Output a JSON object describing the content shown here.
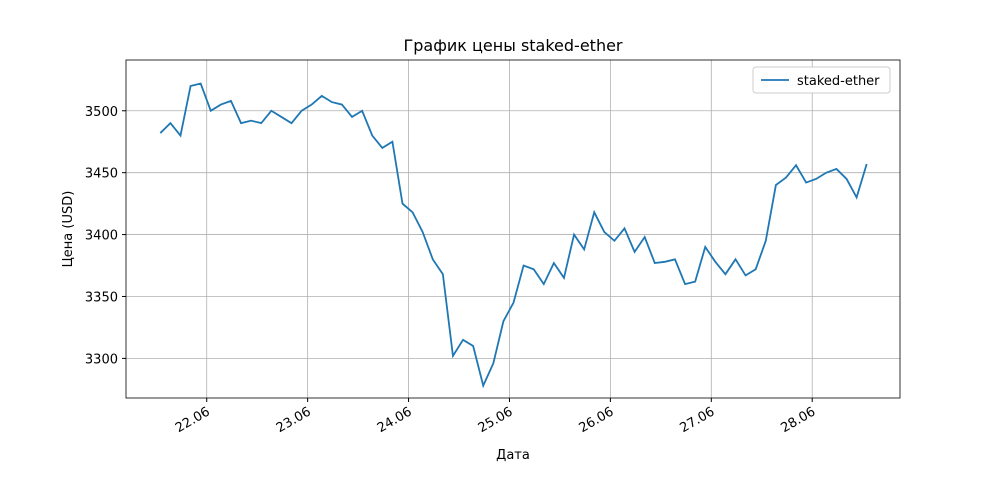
{
  "chart_data": {
    "type": "line",
    "title": "График цены staked-ether",
    "xlabel": "Дата",
    "ylabel": "Цена (USD)",
    "x": [
      21.54,
      21.64,
      21.74,
      21.84,
      21.94,
      22.04,
      22.14,
      22.24,
      22.34,
      22.44,
      22.54,
      22.64,
      22.74,
      22.84,
      22.94,
      23.04,
      23.14,
      23.24,
      23.34,
      23.44,
      23.54,
      23.64,
      23.74,
      23.84,
      23.94,
      24.04,
      24.14,
      24.24,
      24.34,
      24.44,
      24.54,
      24.64,
      24.74,
      24.84,
      24.94,
      25.04,
      25.14,
      25.24,
      25.34,
      25.44,
      25.54,
      25.64,
      25.74,
      25.84,
      25.94,
      26.04,
      26.14,
      26.24,
      26.34,
      26.44,
      26.54,
      26.64,
      26.74,
      26.84,
      26.94,
      27.04,
      27.14,
      27.24,
      27.34,
      27.44,
      27.54,
      27.64,
      27.74,
      27.84,
      27.94,
      28.04,
      28.14,
      28.24,
      28.34,
      28.44,
      28.54
    ],
    "series": [
      {
        "name": "staked-ether",
        "color": "#1f77b4",
        "values": [
          3482,
          3490,
          3480,
          3520,
          3522,
          3500,
          3505,
          3508,
          3490,
          3492,
          3490,
          3500,
          3495,
          3490,
          3500,
          3505,
          3512,
          3507,
          3505,
          3495,
          3500,
          3480,
          3470,
          3475,
          3425,
          3418,
          3402,
          3380,
          3368,
          3302,
          3315,
          3310,
          3278,
          3296,
          3330,
          3345,
          3375,
          3372,
          3360,
          3377,
          3365,
          3400,
          3388,
          3418,
          3402,
          3395,
          3405,
          3386,
          3398,
          3377,
          3378,
          3380,
          3360,
          3362,
          3390,
          3378,
          3368,
          3380,
          3367,
          3372,
          3395,
          3440,
          3446,
          3456,
          3442,
          3445,
          3450,
          3453,
          3445,
          3430,
          3457
        ]
      }
    ],
    "xlim": [
      21.2,
      28.87
    ],
    "xticks": [
      {
        "value": 22,
        "label": "22.06"
      },
      {
        "value": 23,
        "label": "23.06"
      },
      {
        "value": 24,
        "label": "24.06"
      },
      {
        "value": 25,
        "label": "25.06"
      },
      {
        "value": 26,
        "label": "26.06"
      },
      {
        "value": 27,
        "label": "27.06"
      },
      {
        "value": 28,
        "label": "28.06"
      }
    ],
    "ylim": [
      3268,
      3541
    ],
    "yticks": [
      3300,
      3350,
      3400,
      3450,
      3500
    ],
    "grid": true,
    "legend": "upper right"
  }
}
